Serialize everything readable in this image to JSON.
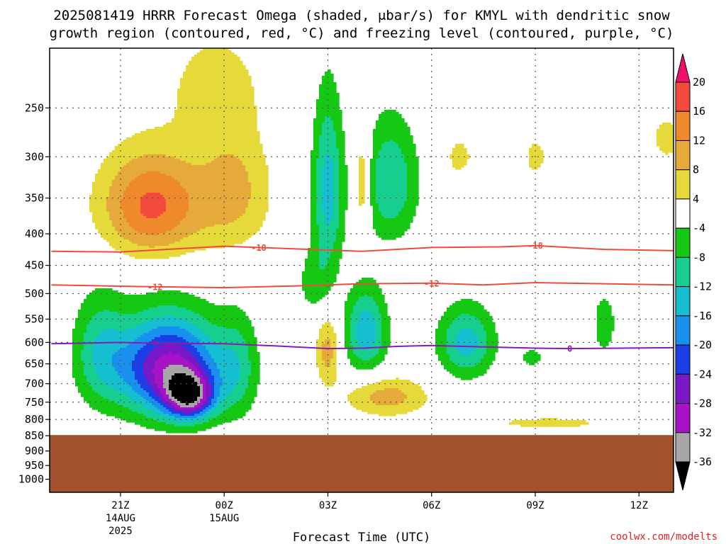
{
  "title_line1": "2025081419 HRRR Forecast Omega (shaded, μbar/s) for KMYL with dendritic snow",
  "title_line2": "growth region (contoured, red, °C) and freezing level (contoured, purple, °C)",
  "credit": "coolwx.com/modelts",
  "colors": {
    "dendritic_contour": "#f04a3c",
    "freezing_contour": "#8a1ab8",
    "terrain": "#a0522d",
    "grid": "#555555"
  },
  "chart_data": {
    "type": "heatmap",
    "title": "2025081419 HRRR Forecast Omega (shaded, μbar/s) for KMYL with dendritic snow growth region (contoured, red, °C) and freezing level (contoured, purple, °C)",
    "xlabel": "Forecast Time (UTC)",
    "ylabel": "",
    "x_ticks": [
      {
        "hour": 2,
        "label": "21Z",
        "sub1": "14AUG",
        "sub2": "2025"
      },
      {
        "hour": 5,
        "label": "00Z",
        "sub1": "15AUG",
        "sub2": ""
      },
      {
        "hour": 8,
        "label": "03Z",
        "sub1": "",
        "sub2": ""
      },
      {
        "hour": 11,
        "label": "06Z",
        "sub1": "",
        "sub2": ""
      },
      {
        "hour": 14,
        "label": "09Z",
        "sub1": "",
        "sub2": ""
      },
      {
        "hour": 17,
        "label": "12Z",
        "sub1": "",
        "sub2": ""
      }
    ],
    "xlim": [
      -0.05,
      18.0
    ],
    "y_scale": "log-pressure",
    "ylim": [
      1050,
      200
    ],
    "y_ticks": [
      250,
      300,
      350,
      400,
      450,
      500,
      550,
      600,
      650,
      700,
      750,
      800,
      850,
      900,
      950,
      1000
    ],
    "grid": true,
    "surface_pressure": 848,
    "colorbar": {
      "levels": [
        20,
        16,
        12,
        8,
        4,
        -4,
        -8,
        -12,
        -16,
        -20,
        -24,
        -28,
        -32,
        -36
      ],
      "labels": [
        "20",
        "16",
        "12",
        "8",
        "4",
        "-4",
        "-8",
        "-12",
        "-16",
        "-20",
        "-24",
        "-28",
        "-32",
        "-36"
      ],
      "colors": [
        "#f0106a",
        "#f24a3c",
        "#ee8a2c",
        "#e6aa3a",
        "#e6d93a",
        "#ffffff",
        "#14c814",
        "#16cf8e",
        "#16bfcf",
        "#1890f0",
        "#1c3ee6",
        "#7a18c8",
        "#a812c6",
        "#a6a6a6",
        "#000000"
      ]
    },
    "dendritic_contours": [
      {
        "level": -18,
        "label": "-18",
        "points": [
          [
            0.0,
            427
          ],
          [
            2.0,
            428
          ],
          [
            5.0,
            419
          ],
          [
            7.0,
            423
          ],
          [
            9.0,
            427
          ],
          [
            11.0,
            421
          ],
          [
            13.0,
            420
          ],
          [
            14.0,
            418
          ],
          [
            16.0,
            424
          ],
          [
            18.0,
            426
          ]
        ],
        "label_hours": [
          6.0,
          14.0
        ]
      },
      {
        "level": -12,
        "label": "-12",
        "points": [
          [
            0.0,
            484
          ],
          [
            2.5,
            487
          ],
          [
            5.0,
            489
          ],
          [
            7.0,
            486
          ],
          [
            9.0,
            482
          ],
          [
            11.0,
            481
          ],
          [
            12.5,
            484
          ],
          [
            14.0,
            480
          ],
          [
            16.0,
            482
          ],
          [
            18.0,
            484
          ]
        ],
        "label_hours": [
          3.0,
          11.0
        ]
      }
    ],
    "freezing_contours": [
      {
        "level": 0,
        "label": "0",
        "points": [
          [
            0.0,
            603
          ],
          [
            2.0,
            600
          ],
          [
            3.0,
            602
          ],
          [
            5.0,
            603
          ],
          [
            6.5,
            608
          ],
          [
            8.0,
            614
          ],
          [
            9.0,
            613
          ],
          [
            10.0,
            609
          ],
          [
            11.0,
            607
          ],
          [
            12.5,
            610
          ],
          [
            14.0,
            613
          ],
          [
            15.0,
            614
          ],
          [
            16.5,
            613
          ],
          [
            18.0,
            612
          ]
        ],
        "label_hours": [
          3.0,
          15.0
        ]
      }
    ],
    "omega_features": [
      {
        "name": "upper ascent core (21Z-00Z)",
        "hour": 3.0,
        "pressure": 360,
        "peak": 18
      },
      {
        "name": "lower descent core (22Z-23Z)",
        "hour": 3.8,
        "pressure": 720,
        "peak": -38
      },
      {
        "name": "upper descent band near 03Z",
        "hour": 8.0,
        "pressure": 340,
        "peak": -14
      },
      {
        "name": "mid ascent near 03Z",
        "hour": 8.0,
        "pressure": 620,
        "peak": 10
      },
      {
        "name": "low ascent near 04Z",
        "hour": 9.5,
        "pressure": 730,
        "peak": 10
      },
      {
        "name": "upper descent near 05Z",
        "hour": 9.9,
        "pressure": 350,
        "peak": -11
      },
      {
        "name": "mid descent near 04Z",
        "hour": 9.2,
        "pressure": 580,
        "peak": -16
      },
      {
        "name": "mid descent near 07Z",
        "hour": 12.0,
        "pressure": 595,
        "peak": -14
      }
    ]
  }
}
